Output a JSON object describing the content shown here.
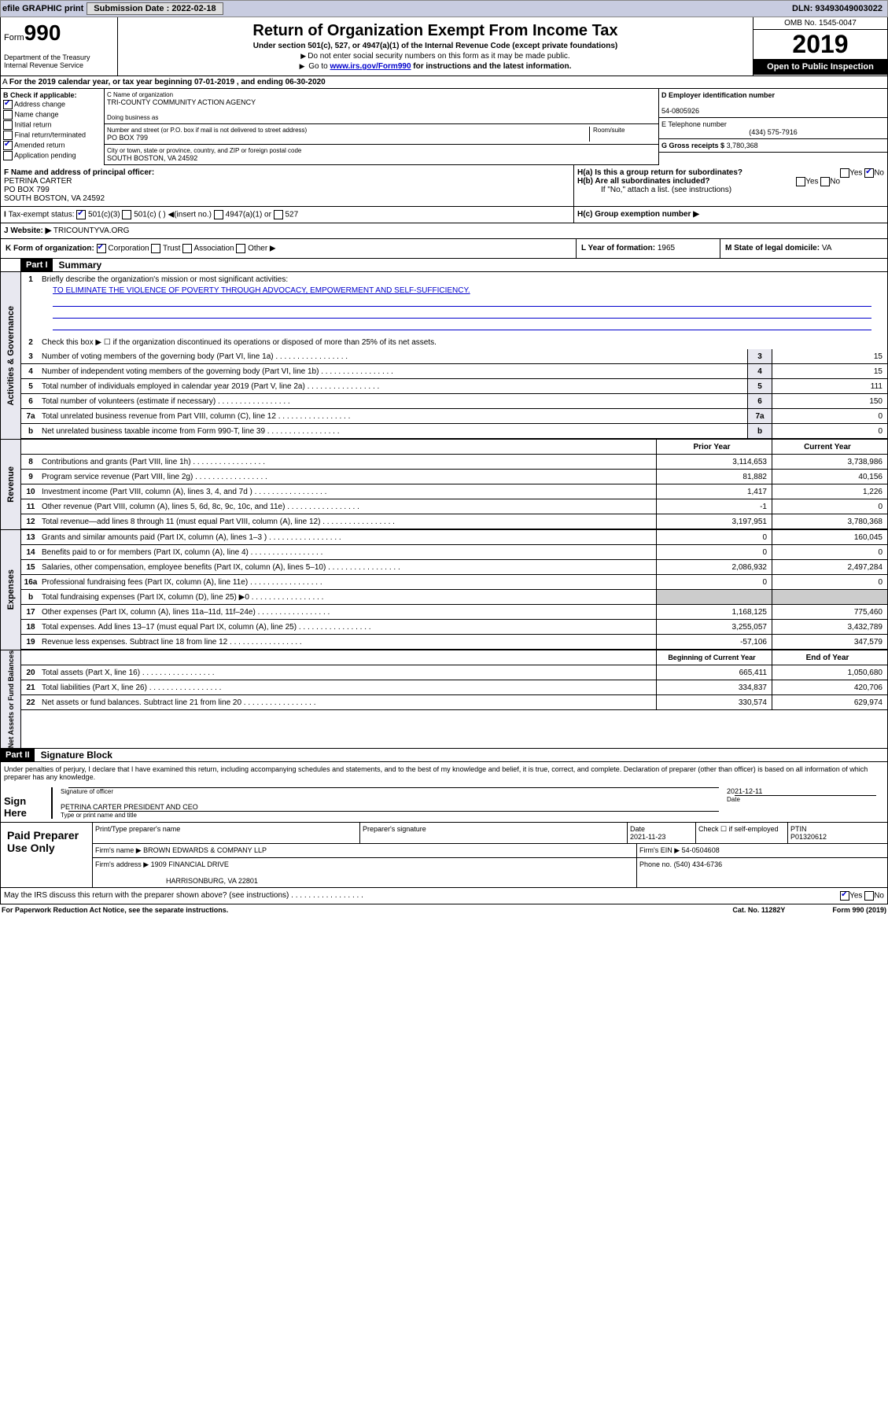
{
  "topbar": {
    "efile": "efile GRAPHIC print",
    "subdate_lbl": "Submission Date : 2022-02-18",
    "dln": "DLN: 93493049003022"
  },
  "header": {
    "form": "Form",
    "num": "990",
    "dept": "Department of the Treasury\nInternal Revenue Service",
    "title": "Return of Organization Exempt From Income Tax",
    "sub": "Under section 501(c), 527, or 4947(a)(1) of the Internal Revenue Code (except private foundations)",
    "note1": "Do not enter social security numbers on this form as it may be made public.",
    "note2_pre": "Go to ",
    "note2_link": "www.irs.gov/Form990",
    "note2_post": " for instructions and the latest information.",
    "omb": "OMB No. 1545-0047",
    "year": "2019",
    "open": "Open to Public Inspection"
  },
  "rowA": "For the 2019 calendar year, or tax year beginning 07-01-2019    , and ending 06-30-2020",
  "boxB": {
    "title": "B Check if applicable:",
    "items": [
      "Address change",
      "Name change",
      "Initial return",
      "Final return/terminated",
      "Amended return",
      "Application pending"
    ],
    "checked": [
      true,
      false,
      false,
      false,
      true,
      false
    ]
  },
  "boxC": {
    "name_lbl": "C Name of organization",
    "name": "TRI-COUNTY COMMUNITY ACTION AGENCY",
    "dba_lbl": "Doing business as",
    "addr_lbl": "Number and street (or P.O. box if mail is not delivered to street address)",
    "room_lbl": "Room/suite",
    "addr": "PO BOX 799",
    "city_lbl": "City or town, state or province, country, and ZIP or foreign postal code",
    "city": "SOUTH BOSTON, VA  24592"
  },
  "boxD": {
    "lbl": "D Employer identification number",
    "val": "54-0805926"
  },
  "boxE": {
    "lbl": "E Telephone number",
    "val": "(434) 575-7916"
  },
  "boxG": {
    "lbl": "G Gross receipts $",
    "val": "3,780,368"
  },
  "boxF": {
    "lbl": "F  Name and address of principal officer:",
    "name": "PETRINA CARTER",
    "addr": "PO BOX 799\nSOUTH BOSTON, VA  24592"
  },
  "boxH": {
    "a": "H(a)  Is this a group return for subordinates?",
    "b": "H(b)  Are all subordinates included?",
    "bnote": "If \"No,\" attach a list. (see instructions)",
    "c": "H(c)  Group exemption number ▶",
    "yes": "Yes",
    "no": "No"
  },
  "boxI": {
    "lbl": "Tax-exempt status:",
    "opts": [
      "501(c)(3)",
      "501(c) (   ) ◀(insert no.)",
      "4947(a)(1) or",
      "527"
    ]
  },
  "boxJ": {
    "lbl": "Website: ▶",
    "val": "TRICOUNTYVA.ORG"
  },
  "boxK": {
    "lbl": "K Form of organization:",
    "opts": [
      "Corporation",
      "Trust",
      "Association",
      "Other ▶"
    ]
  },
  "boxL": {
    "lbl": "L Year of formation:",
    "val": "1965"
  },
  "boxM": {
    "lbl": "M State of legal domicile:",
    "val": "VA"
  },
  "part1": {
    "hdr": "Part I",
    "title": "Summary"
  },
  "gov": {
    "tab": "Activities & Governance",
    "l1": "Briefly describe the organization's mission or most significant activities:",
    "mission": "TO ELIMINATE THE VIOLENCE OF POVERTY THROUGH ADVOCACY, EMPOWERMENT AND SELF-SUFFICIENCY.",
    "l2": "Check this box ▶ ☐  if the organization discontinued its operations or disposed of more than 25% of its net assets.",
    "rows": [
      {
        "n": "3",
        "t": "Number of voting members of the governing body (Part VI, line 1a)",
        "v": "15"
      },
      {
        "n": "4",
        "t": "Number of independent voting members of the governing body (Part VI, line 1b)",
        "v": "15"
      },
      {
        "n": "5",
        "t": "Total number of individuals employed in calendar year 2019 (Part V, line 2a)",
        "v": "111"
      },
      {
        "n": "6",
        "t": "Total number of volunteers (estimate if necessary)",
        "v": "150"
      },
      {
        "n": "7a",
        "t": "Total unrelated business revenue from Part VIII, column (C), line 12",
        "v": "0"
      },
      {
        "n": "b",
        "t": "Net unrelated business taxable income from Form 990-T, line 39",
        "v": "0"
      }
    ]
  },
  "rev": {
    "tab": "Revenue",
    "prior": "Prior Year",
    "current": "Current Year",
    "rows": [
      {
        "n": "8",
        "t": "Contributions and grants (Part VIII, line 1h)",
        "p": "3,114,653",
        "c": "3,738,986"
      },
      {
        "n": "9",
        "t": "Program service revenue (Part VIII, line 2g)",
        "p": "81,882",
        "c": "40,156"
      },
      {
        "n": "10",
        "t": "Investment income (Part VIII, column (A), lines 3, 4, and 7d )",
        "p": "1,417",
        "c": "1,226"
      },
      {
        "n": "11",
        "t": "Other revenue (Part VIII, column (A), lines 5, 6d, 8c, 9c, 10c, and 11e)",
        "p": "-1",
        "c": "0"
      },
      {
        "n": "12",
        "t": "Total revenue—add lines 8 through 11 (must equal Part VIII, column (A), line 12)",
        "p": "3,197,951",
        "c": "3,780,368"
      }
    ]
  },
  "exp": {
    "tab": "Expenses",
    "rows": [
      {
        "n": "13",
        "t": "Grants and similar amounts paid (Part IX, column (A), lines 1–3 )",
        "p": "0",
        "c": "160,045"
      },
      {
        "n": "14",
        "t": "Benefits paid to or for members (Part IX, column (A), line 4)",
        "p": "0",
        "c": "0"
      },
      {
        "n": "15",
        "t": "Salaries, other compensation, employee benefits (Part IX, column (A), lines 5–10)",
        "p": "2,086,932",
        "c": "2,497,284"
      },
      {
        "n": "16a",
        "t": "Professional fundraising fees (Part IX, column (A), line 11e)",
        "p": "0",
        "c": "0"
      },
      {
        "n": "b",
        "t": "Total fundraising expenses (Part IX, column (D), line 25) ▶0",
        "p": "",
        "c": "",
        "shade": true
      },
      {
        "n": "17",
        "t": "Other expenses (Part IX, column (A), lines 11a–11d, 11f–24e)",
        "p": "1,168,125",
        "c": "775,460"
      },
      {
        "n": "18",
        "t": "Total expenses. Add lines 13–17 (must equal Part IX, column (A), line 25)",
        "p": "3,255,057",
        "c": "3,432,789"
      },
      {
        "n": "19",
        "t": "Revenue less expenses. Subtract line 18 from line 12",
        "p": "-57,106",
        "c": "347,579"
      }
    ]
  },
  "net": {
    "tab": "Net Assets or Fund Balances",
    "beg": "Beginning of Current Year",
    "end": "End of Year",
    "rows": [
      {
        "n": "20",
        "t": "Total assets (Part X, line 16)",
        "p": "665,411",
        "c": "1,050,680"
      },
      {
        "n": "21",
        "t": "Total liabilities (Part X, line 26)",
        "p": "334,837",
        "c": "420,706"
      },
      {
        "n": "22",
        "t": "Net assets or fund balances. Subtract line 21 from line 20",
        "p": "330,574",
        "c": "629,974"
      }
    ]
  },
  "part2": {
    "hdr": "Part II",
    "title": "Signature Block"
  },
  "sig": {
    "decl": "Under penalties of perjury, I declare that I have examined this return, including accompanying schedules and statements, and to the best of my knowledge and belief, it is true, correct, and complete. Declaration of preparer (other than officer) is based on all information of which preparer has any knowledge.",
    "here": "Sign Here",
    "off_lbl": "Signature of officer",
    "date": "2021-12-11",
    "date_lbl": "Date",
    "name": "PETRINA CARTER  PRESIDENT AND CEO",
    "name_lbl": "Type or print name and title"
  },
  "paid": {
    "title": "Paid Preparer Use Only",
    "print_lbl": "Print/Type preparer's name",
    "sig_lbl": "Preparer's signature",
    "date_lbl": "Date",
    "date": "2021-11-23",
    "check_lbl": "Check ☐ if self-employed",
    "ptin_lbl": "PTIN",
    "ptin": "P01320612",
    "firm_lbl": "Firm's name    ▶",
    "firm": "BROWN EDWARDS & COMPANY LLP",
    "ein_lbl": "Firm's EIN ▶",
    "ein": "54-0504608",
    "addr_lbl": "Firm's address ▶",
    "addr": "1909 FINANCIAL DRIVE",
    "city": "HARRISONBURG, VA  22801",
    "phone_lbl": "Phone no.",
    "phone": "(540) 434-6736"
  },
  "discuss": "May the IRS discuss this return with the preparer shown above? (see instructions)",
  "footer": {
    "paperwork": "For Paperwork Reduction Act Notice, see the separate instructions.",
    "cat": "Cat. No. 11282Y",
    "form": "Form 990 (2019)"
  }
}
